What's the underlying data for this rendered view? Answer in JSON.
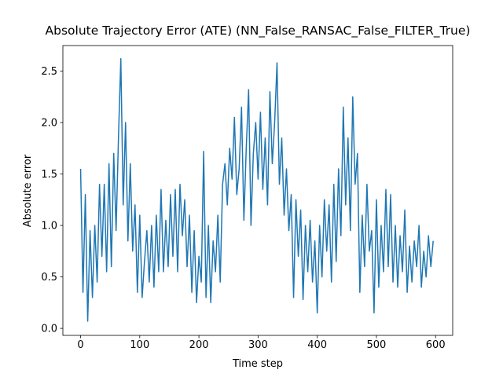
{
  "chart_data": {
    "type": "line",
    "title": "Absolute Trajectory Error (ATE) (NN_False_RANSAC_False_FILTER_True)",
    "x_label": "Time step",
    "y_label": "Absolute error",
    "x": [
      0,
      4,
      8,
      12,
      16,
      20,
      24,
      28,
      32,
      36,
      40,
      44,
      48,
      52,
      56,
      60,
      64,
      68,
      72,
      76,
      80,
      84,
      88,
      92,
      96,
      100,
      104,
      108,
      112,
      116,
      120,
      124,
      128,
      132,
      136,
      140,
      144,
      148,
      152,
      156,
      160,
      164,
      168,
      172,
      176,
      180,
      184,
      188,
      192,
      196,
      200,
      204,
      208,
      212,
      216,
      220,
      224,
      228,
      232,
      236,
      240,
      244,
      248,
      252,
      256,
      260,
      264,
      268,
      272,
      276,
      280,
      284,
      288,
      292,
      296,
      300,
      304,
      308,
      312,
      316,
      320,
      324,
      328,
      332,
      336,
      340,
      344,
      348,
      352,
      356,
      360,
      364,
      368,
      372,
      376,
      380,
      384,
      388,
      392,
      396,
      400,
      404,
      408,
      412,
      416,
      420,
      424,
      428,
      432,
      436,
      440,
      444,
      448,
      452,
      456,
      460,
      464,
      468,
      472,
      476,
      480,
      484,
      488,
      492,
      496,
      500,
      504,
      508,
      512,
      516,
      520,
      524,
      528,
      532,
      536,
      540,
      544,
      548,
      552,
      556,
      560,
      564,
      568,
      572,
      576,
      580,
      584,
      588,
      592,
      596
    ],
    "series": [
      {
        "name": "ATE",
        "color": "#1f77b4",
        "values": [
          1.55,
          0.35,
          1.3,
          0.07,
          0.95,
          0.3,
          1.0,
          0.45,
          1.4,
          0.7,
          1.4,
          0.55,
          1.6,
          0.6,
          1.7,
          0.95,
          1.85,
          2.62,
          1.2,
          2.0,
          0.85,
          1.6,
          0.75,
          1.2,
          0.35,
          1.1,
          0.3,
          0.65,
          0.95,
          0.45,
          1.0,
          0.4,
          1.1,
          0.55,
          1.35,
          0.55,
          1.05,
          0.6,
          1.3,
          0.7,
          1.35,
          0.55,
          1.4,
          0.9,
          1.25,
          0.6,
          1.1,
          0.35,
          0.95,
          0.25,
          0.7,
          0.45,
          1.72,
          0.3,
          1.0,
          0.25,
          0.85,
          0.55,
          1.1,
          0.45,
          1.4,
          1.6,
          1.2,
          1.75,
          1.45,
          2.05,
          1.3,
          1.55,
          2.15,
          1.05,
          1.75,
          2.32,
          1.0,
          1.7,
          2.0,
          1.45,
          2.1,
          1.35,
          1.85,
          1.2,
          2.3,
          1.6,
          2.0,
          2.58,
          1.4,
          1.85,
          1.1,
          1.55,
          0.95,
          1.3,
          0.3,
          1.25,
          0.7,
          1.15,
          0.28,
          1.0,
          0.55,
          1.05,
          0.45,
          0.85,
          0.15,
          1.0,
          0.5,
          1.25,
          0.75,
          1.2,
          0.45,
          1.4,
          0.65,
          1.55,
          0.9,
          2.15,
          1.2,
          1.85,
          0.95,
          2.25,
          1.4,
          1.7,
          0.35,
          1.1,
          0.6,
          1.4,
          0.75,
          0.95,
          0.15,
          1.25,
          0.4,
          1.0,
          0.55,
          1.35,
          0.6,
          1.3,
          0.45,
          1.0,
          0.4,
          0.9,
          0.55,
          1.15,
          0.35,
          0.8,
          0.45,
          0.85,
          0.6,
          1.0,
          0.4,
          0.75,
          0.5,
          0.9,
          0.6,
          0.85
        ]
      }
    ],
    "xlim": [
      -29.95,
      628.95
    ],
    "ylim": [
      -0.068,
      2.748
    ],
    "xticks": [
      0,
      100,
      200,
      300,
      400,
      500,
      600
    ],
    "yticks": [
      {
        "value": 0,
        "label": "0.0"
      },
      0.5,
      {
        "value": 1,
        "label": "1.0"
      },
      1.5,
      {
        "value": 2,
        "label": "2.0"
      },
      2.5
    ]
  }
}
